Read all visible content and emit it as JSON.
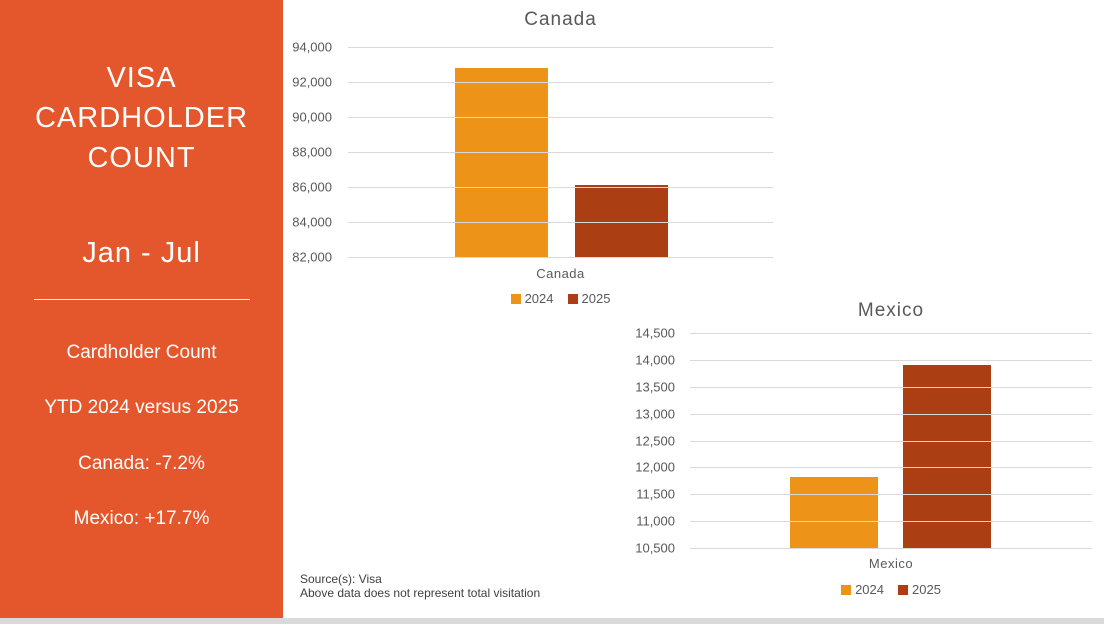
{
  "slide": {
    "sidebar": {
      "bg_color": "#E4572C",
      "title_lines": [
        "VISA",
        "CARDHOLDER",
        "COUNT"
      ],
      "subtitle": "Jan - Jul",
      "stats": [
        "Cardholder Count",
        "YTD 2024 versus 2025",
        "Canada: -7.2%",
        "Mexico: +17.7%"
      ]
    },
    "source_lines": [
      "Source(s): Visa",
      "Above data does not represent total visitation"
    ],
    "footer_bar_color": "#D9D9D9"
  },
  "chart_data": [
    {
      "type": "bar",
      "title": "Canada",
      "categories": [
        "Canada"
      ],
      "series": [
        {
          "name": "2024",
          "values": [
            92800
          ],
          "color": "#EC9318"
        },
        {
          "name": "2025",
          "values": [
            86100
          ],
          "color": "#AC3E14"
        }
      ],
      "ylim": [
        82000,
        94000
      ],
      "ytick_step": 2000,
      "grid": true,
      "legend_position": "bottom",
      "gridline_color": "#D9D9D9",
      "text_color": "#595959"
    },
    {
      "type": "bar",
      "title": "Mexico",
      "categories": [
        "Mexico"
      ],
      "series": [
        {
          "name": "2024",
          "values": [
            11820
          ],
          "color": "#EC9318"
        },
        {
          "name": "2025",
          "values": [
            13910
          ],
          "color": "#AC3E14"
        }
      ],
      "ylim": [
        10500,
        14500
      ],
      "ytick_step": 500,
      "grid": true,
      "legend_position": "bottom",
      "gridline_color": "#D9D9D9",
      "text_color": "#595959"
    }
  ]
}
